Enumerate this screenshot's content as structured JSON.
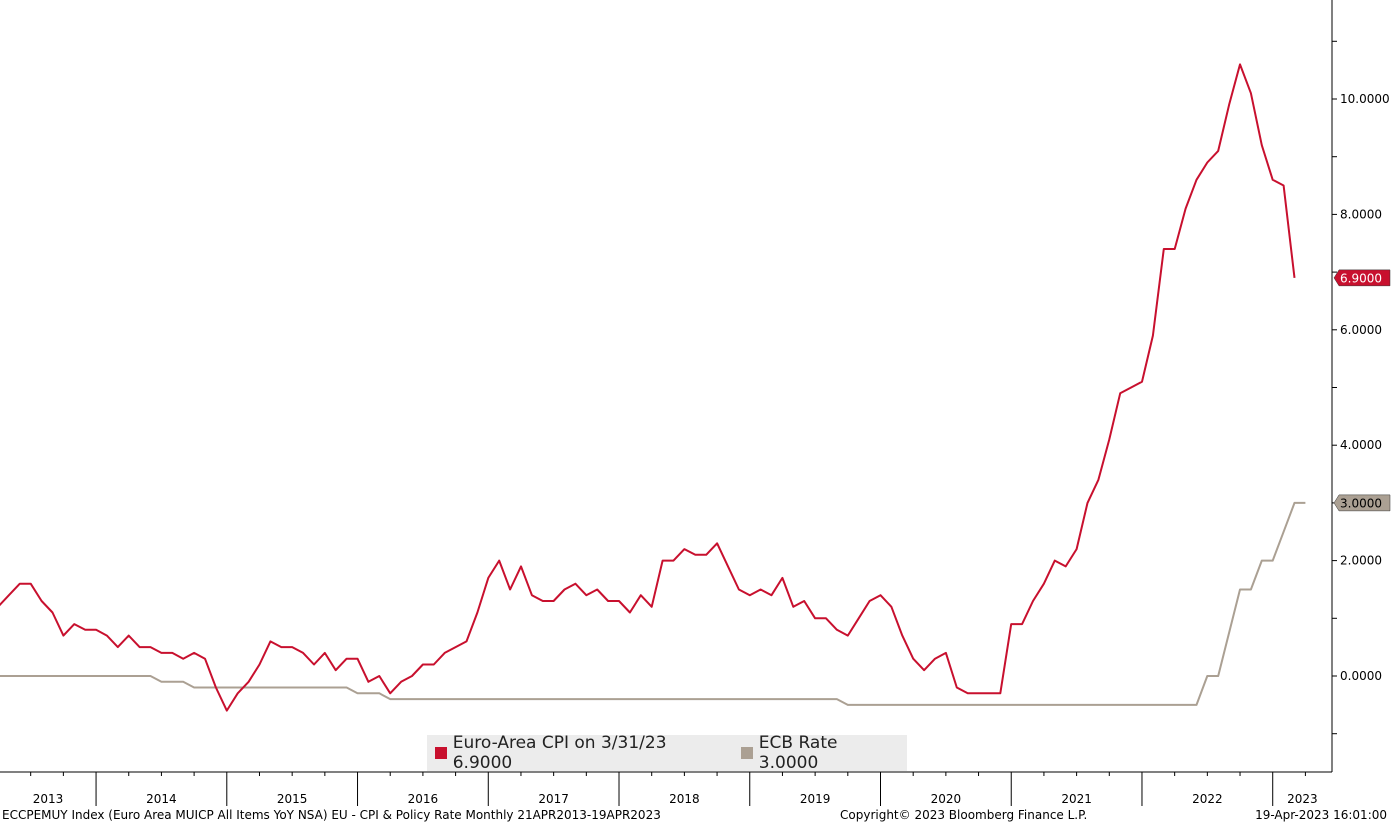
{
  "chart_data": {
    "type": "line",
    "title": "",
    "xlabel": "",
    "ylabel": "",
    "x_range": [
      "2013-04",
      "2023-04"
    ],
    "ylim": [
      -1.0,
      11.7
    ],
    "y_ticks": [
      "0.0000",
      "2.0000",
      "4.0000",
      "6.0000",
      "8.0000",
      "10.0000"
    ],
    "x_tick_labels": [
      "2013",
      "2014",
      "2015",
      "2016",
      "2017",
      "2018",
      "2019",
      "2020",
      "2021",
      "2022",
      "2023"
    ],
    "grid": false,
    "legend_position": "bottom-center",
    "series": [
      {
        "name": "Euro-Area CPI",
        "legend_label": "Euro-Area CPI on 3/31/23 6.9000",
        "color": "#c8102e",
        "last_value_label": "6.9000",
        "points": [
          [
            "2013-04",
            1.2
          ],
          [
            "2013-05",
            1.4
          ],
          [
            "2013-06",
            1.6
          ],
          [
            "2013-07",
            1.6
          ],
          [
            "2013-08",
            1.3
          ],
          [
            "2013-09",
            1.1
          ],
          [
            "2013-10",
            0.7
          ],
          [
            "2013-11",
            0.9
          ],
          [
            "2013-12",
            0.8
          ],
          [
            "2014-01",
            0.8
          ],
          [
            "2014-02",
            0.7
          ],
          [
            "2014-03",
            0.5
          ],
          [
            "2014-04",
            0.7
          ],
          [
            "2014-05",
            0.5
          ],
          [
            "2014-06",
            0.5
          ],
          [
            "2014-07",
            0.4
          ],
          [
            "2014-08",
            0.4
          ],
          [
            "2014-09",
            0.3
          ],
          [
            "2014-10",
            0.4
          ],
          [
            "2014-11",
            0.3
          ],
          [
            "2014-12",
            -0.2
          ],
          [
            "2015-01",
            -0.6
          ],
          [
            "2015-02",
            -0.3
          ],
          [
            "2015-03",
            -0.1
          ],
          [
            "2015-04",
            0.2
          ],
          [
            "2015-05",
            0.6
          ],
          [
            "2015-06",
            0.5
          ],
          [
            "2015-07",
            0.5
          ],
          [
            "2015-08",
            0.4
          ],
          [
            "2015-09",
            0.2
          ],
          [
            "2015-10",
            0.4
          ],
          [
            "2015-11",
            0.1
          ],
          [
            "2015-12",
            0.3
          ],
          [
            "2016-01",
            0.3
          ],
          [
            "2016-02",
            -0.1
          ],
          [
            "2016-03",
            0.0
          ],
          [
            "2016-04",
            -0.3
          ],
          [
            "2016-05",
            -0.1
          ],
          [
            "2016-06",
            0.0
          ],
          [
            "2016-07",
            0.2
          ],
          [
            "2016-08",
            0.2
          ],
          [
            "2016-09",
            0.4
          ],
          [
            "2016-10",
            0.5
          ],
          [
            "2016-11",
            0.6
          ],
          [
            "2016-12",
            1.1
          ],
          [
            "2017-01",
            1.7
          ],
          [
            "2017-02",
            2.0
          ],
          [
            "2017-03",
            1.5
          ],
          [
            "2017-04",
            1.9
          ],
          [
            "2017-05",
            1.4
          ],
          [
            "2017-06",
            1.3
          ],
          [
            "2017-07",
            1.3
          ],
          [
            "2017-08",
            1.5
          ],
          [
            "2017-09",
            1.6
          ],
          [
            "2017-10",
            1.4
          ],
          [
            "2017-11",
            1.5
          ],
          [
            "2017-12",
            1.3
          ],
          [
            "2018-01",
            1.3
          ],
          [
            "2018-02",
            1.1
          ],
          [
            "2018-03",
            1.4
          ],
          [
            "2018-04",
            1.2
          ],
          [
            "2018-05",
            2.0
          ],
          [
            "2018-06",
            2.0
          ],
          [
            "2018-07",
            2.2
          ],
          [
            "2018-08",
            2.1
          ],
          [
            "2018-09",
            2.1
          ],
          [
            "2018-10",
            2.3
          ],
          [
            "2018-11",
            1.9
          ],
          [
            "2018-12",
            1.5
          ],
          [
            "2019-01",
            1.4
          ],
          [
            "2019-02",
            1.5
          ],
          [
            "2019-03",
            1.4
          ],
          [
            "2019-04",
            1.7
          ],
          [
            "2019-05",
            1.2
          ],
          [
            "2019-06",
            1.3
          ],
          [
            "2019-07",
            1.0
          ],
          [
            "2019-08",
            1.0
          ],
          [
            "2019-09",
            0.8
          ],
          [
            "2019-10",
            0.7
          ],
          [
            "2019-11",
            1.0
          ],
          [
            "2019-12",
            1.3
          ],
          [
            "2020-01",
            1.4
          ],
          [
            "2020-02",
            1.2
          ],
          [
            "2020-03",
            0.7
          ],
          [
            "2020-04",
            0.3
          ],
          [
            "2020-05",
            0.1
          ],
          [
            "2020-06",
            0.3
          ],
          [
            "2020-07",
            0.4
          ],
          [
            "2020-08",
            -0.2
          ],
          [
            "2020-09",
            -0.3
          ],
          [
            "2020-10",
            -0.3
          ],
          [
            "2020-11",
            -0.3
          ],
          [
            "2020-12",
            -0.3
          ],
          [
            "2021-01",
            0.9
          ],
          [
            "2021-02",
            0.9
          ],
          [
            "2021-03",
            1.3
          ],
          [
            "2021-04",
            1.6
          ],
          [
            "2021-05",
            2.0
          ],
          [
            "2021-06",
            1.9
          ],
          [
            "2021-07",
            2.2
          ],
          [
            "2021-08",
            3.0
          ],
          [
            "2021-09",
            3.4
          ],
          [
            "2021-10",
            4.1
          ],
          [
            "2021-11",
            4.9
          ],
          [
            "2021-12",
            5.0
          ],
          [
            "2022-01",
            5.1
          ],
          [
            "2022-02",
            5.9
          ],
          [
            "2022-03",
            7.4
          ],
          [
            "2022-04",
            7.4
          ],
          [
            "2022-05",
            8.1
          ],
          [
            "2022-06",
            8.6
          ],
          [
            "2022-07",
            8.9
          ],
          [
            "2022-08",
            9.1
          ],
          [
            "2022-09",
            9.9
          ],
          [
            "2022-10",
            10.6
          ],
          [
            "2022-11",
            10.1
          ],
          [
            "2022-12",
            9.2
          ],
          [
            "2023-01",
            8.6
          ],
          [
            "2023-02",
            8.5
          ],
          [
            "2023-03",
            6.9
          ]
        ]
      },
      {
        "name": "ECB Rate",
        "legend_label": "ECB Rate 3.0000",
        "color": "#aba093",
        "last_value_label": "3.0000",
        "points": [
          [
            "2013-04",
            0.0
          ],
          [
            "2014-06",
            0.0
          ],
          [
            "2014-07",
            -0.1
          ],
          [
            "2014-09",
            -0.1
          ],
          [
            "2014-10",
            -0.2
          ],
          [
            "2015-12",
            -0.2
          ],
          [
            "2016-01",
            -0.3
          ],
          [
            "2016-03",
            -0.3
          ],
          [
            "2016-04",
            -0.4
          ],
          [
            "2019-09",
            -0.4
          ],
          [
            "2019-10",
            -0.5
          ],
          [
            "2022-06",
            -0.5
          ],
          [
            "2022-07",
            0.0
          ],
          [
            "2022-08",
            0.0
          ],
          [
            "2022-09",
            0.75
          ],
          [
            "2022-10",
            1.5
          ],
          [
            "2022-11",
            1.5
          ],
          [
            "2022-12",
            2.0
          ],
          [
            "2023-01",
            2.0
          ],
          [
            "2023-02",
            2.5
          ],
          [
            "2023-03",
            3.0
          ],
          [
            "2023-04",
            3.0
          ]
        ]
      }
    ]
  },
  "footer": {
    "left": "ECCPEMUY Index (Euro Area MUICP All Items YoY NSA) EU - CPI & Policy Rate  Monthly 21APR2013-19APR2023",
    "middle": "Copyright© 2023 Bloomberg Finance L.P.",
    "right": "19-Apr-2023 16:01:00"
  }
}
